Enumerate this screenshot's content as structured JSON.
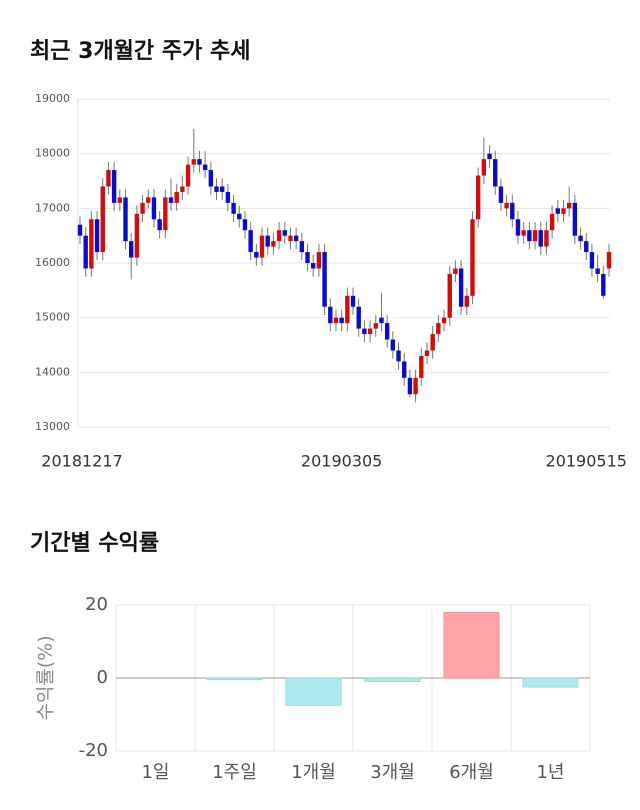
{
  "chart_data": [
    {
      "type": "candlestick",
      "title": "최근 3개월간 주가 추세",
      "ylim": [
        13000,
        19000
      ],
      "yticks": [
        13000,
        14000,
        15000,
        16000,
        17000,
        18000,
        19000
      ],
      "grid": true,
      "up_color": "#d00d0d",
      "down_color": "#0c0cc8",
      "categories": [
        "20181217",
        null,
        null,
        null,
        null,
        null,
        null,
        null,
        null,
        null,
        null,
        null,
        null,
        null,
        null,
        null,
        null,
        null,
        null,
        null,
        null,
        null,
        null,
        null,
        null,
        null,
        null,
        null,
        null,
        null,
        null,
        null,
        null,
        null,
        null,
        null,
        null,
        null,
        null,
        null,
        null,
        null,
        null,
        null,
        null,
        null,
        "20190305",
        null,
        null,
        null,
        null,
        null,
        null,
        null,
        null,
        null,
        null,
        null,
        null,
        null,
        null,
        null,
        null,
        null,
        null,
        null,
        null,
        null,
        null,
        null,
        null,
        null,
        null,
        null,
        null,
        null,
        null,
        null,
        null,
        null,
        null,
        null,
        null,
        null,
        null,
        null,
        null,
        null,
        null,
        "20190515",
        null,
        null,
        null,
        null
      ],
      "ohlc": [
        [
          16700,
          16850,
          16350,
          16500
        ],
        [
          16500,
          16650,
          15750,
          15900
        ],
        [
          15900,
          16950,
          15750,
          16800
        ],
        [
          16800,
          16950,
          16050,
          16200
        ],
        [
          16200,
          17550,
          16050,
          17400
        ],
        [
          17400,
          17850,
          17250,
          17700
        ],
        [
          17700,
          17850,
          16950,
          17100
        ],
        [
          17100,
          17350,
          16950,
          17200
        ],
        [
          17200,
          17350,
          16250,
          16400
        ],
        [
          16400,
          16550,
          15700,
          16100
        ],
        [
          16100,
          17050,
          15950,
          16900
        ],
        [
          16900,
          17250,
          16750,
          17100
        ],
        [
          17100,
          17350,
          17000,
          17200
        ],
        [
          17200,
          17350,
          16650,
          16800
        ],
        [
          16800,
          16950,
          16450,
          16600
        ],
        [
          16600,
          17350,
          16450,
          17200
        ],
        [
          17200,
          17550,
          16950,
          17100
        ],
        [
          17100,
          17450,
          16950,
          17300
        ],
        [
          17300,
          17600,
          17150,
          17400
        ],
        [
          17400,
          17950,
          17250,
          17800
        ],
        [
          17800,
          18450,
          17650,
          17900
        ],
        [
          17900,
          18050,
          17650,
          17800
        ],
        [
          17800,
          18050,
          17550,
          17700
        ],
        [
          17700,
          17850,
          17250,
          17400
        ],
        [
          17400,
          17550,
          17150,
          17300
        ],
        [
          17400,
          17550,
          17150,
          17300
        ],
        [
          17300,
          17450,
          16950,
          17100
        ],
        [
          17100,
          17250,
          16750,
          16900
        ],
        [
          16900,
          17050,
          16650,
          16800
        ],
        [
          16800,
          16950,
          16450,
          16600
        ],
        [
          16600,
          16750,
          16050,
          16200
        ],
        [
          16200,
          16350,
          15950,
          16100
        ],
        [
          16100,
          16650,
          15950,
          16500
        ],
        [
          16500,
          16650,
          16150,
          16300
        ],
        [
          16300,
          16550,
          16150,
          16400
        ],
        [
          16400,
          16750,
          16250,
          16600
        ],
        [
          16600,
          16750,
          16350,
          16500
        ],
        [
          16400,
          16650,
          16250,
          16500
        ],
        [
          16500,
          16650,
          16250,
          16400
        ],
        [
          16400,
          16550,
          16050,
          16200
        ],
        [
          16200,
          16350,
          15850,
          16000
        ],
        [
          16000,
          16150,
          15750,
          15900
        ],
        [
          15900,
          16350,
          15750,
          16200
        ],
        [
          16200,
          16350,
          15050,
          15200
        ],
        [
          15200,
          15350,
          14750,
          14900
        ],
        [
          14900,
          15150,
          14750,
          15000
        ],
        [
          15000,
          15150,
          14750,
          14900
        ],
        [
          14900,
          15550,
          14750,
          15400
        ],
        [
          15400,
          15550,
          15050,
          15200
        ],
        [
          15200,
          15350,
          14650,
          14800
        ],
        [
          14800,
          14950,
          14550,
          14700
        ],
        [
          14700,
          14950,
          14550,
          14800
        ],
        [
          14800,
          15050,
          14650,
          14900
        ],
        [
          15000,
          15450,
          14750,
          14900
        ],
        [
          14900,
          15050,
          14450,
          14600
        ],
        [
          14600,
          14750,
          14250,
          14400
        ],
        [
          14400,
          14550,
          14050,
          14200
        ],
        [
          14200,
          14350,
          13750,
          13900
        ],
        [
          13900,
          14050,
          13550,
          13600
        ],
        [
          13600,
          14050,
          13450,
          13900
        ],
        [
          13900,
          14450,
          13750,
          14300
        ],
        [
          14300,
          14550,
          14150,
          14400
        ],
        [
          14400,
          14850,
          14250,
          14700
        ],
        [
          14700,
          15050,
          14550,
          14900
        ],
        [
          14900,
          15150,
          14750,
          15000
        ],
        [
          15000,
          15950,
          14850,
          15800
        ],
        [
          15800,
          16050,
          15650,
          15900
        ],
        [
          15900,
          16050,
          15050,
          15200
        ],
        [
          15200,
          15550,
          15050,
          15400
        ],
        [
          15400,
          16950,
          15250,
          16800
        ],
        [
          16800,
          17750,
          16650,
          17600
        ],
        [
          17600,
          18300,
          17450,
          17900
        ],
        [
          18000,
          18150,
          17750,
          17900
        ],
        [
          17900,
          18050,
          17250,
          17400
        ],
        [
          17400,
          17550,
          16950,
          17100
        ],
        [
          17000,
          17250,
          16850,
          17100
        ],
        [
          17100,
          17250,
          16650,
          16800
        ],
        [
          16800,
          16950,
          16350,
          16500
        ],
        [
          16500,
          16750,
          16350,
          16600
        ],
        [
          16600,
          16750,
          16250,
          16400
        ],
        [
          16400,
          16750,
          16250,
          16600
        ],
        [
          16600,
          16750,
          16150,
          16300
        ],
        [
          16300,
          16750,
          16150,
          16600
        ],
        [
          16600,
          17050,
          16450,
          16900
        ],
        [
          17000,
          17150,
          16750,
          16900
        ],
        [
          16900,
          17150,
          16750,
          17000
        ],
        [
          17000,
          17400,
          16850,
          17100
        ],
        [
          17100,
          17250,
          16350,
          16500
        ],
        [
          16500,
          16650,
          16250,
          16400
        ],
        [
          16400,
          16550,
          16050,
          16200
        ],
        [
          16200,
          16350,
          15750,
          15900
        ],
        [
          15900,
          16150,
          15650,
          15800
        ],
        [
          15800,
          15950,
          15350,
          15400
        ],
        [
          15900,
          16350,
          15750,
          16200
        ]
      ]
    },
    {
      "type": "bar",
      "title": "기간별 수익률",
      "ylabel": "수익률(%)",
      "categories": [
        "1일",
        "1주일",
        "1개월",
        "3개월",
        "6개월",
        "1년"
      ],
      "values": [
        0,
        -0.5,
        -7.5,
        -1,
        18,
        -2.5
      ],
      "ylim": [
        -20,
        20
      ],
      "yticks": [
        -20,
        0,
        20
      ],
      "grid": true,
      "positive_color": "#ffa3a6",
      "negative_color": "#aee9f2"
    }
  ]
}
